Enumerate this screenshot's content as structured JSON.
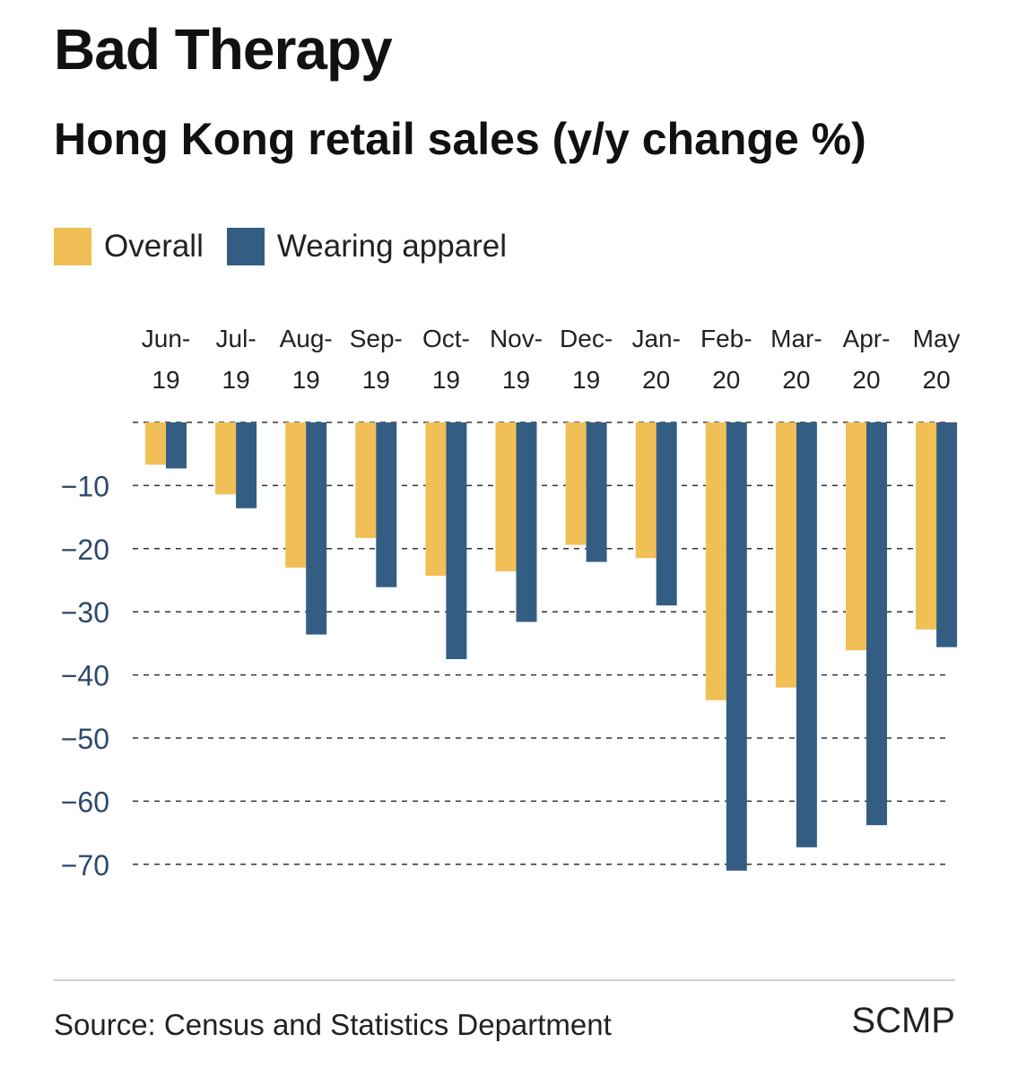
{
  "header": {
    "title": "Bad Therapy",
    "subtitle": "Hong Kong retail sales (y/y change %)"
  },
  "legend": {
    "items": [
      {
        "label": "Overall",
        "color": "#F0BF55"
      },
      {
        "label": "Wearing apparel",
        "color": "#345D84"
      }
    ]
  },
  "chart_data": {
    "type": "bar",
    "title": "Bad Therapy",
    "subtitle": "Hong Kong retail sales (y/y change %)",
    "categories": [
      [
        "Jun-",
        "19"
      ],
      [
        "Jul-",
        "19"
      ],
      [
        "Aug-",
        "19"
      ],
      [
        "Sep-",
        "19"
      ],
      [
        "Oct-",
        "19"
      ],
      [
        "Nov-",
        "19"
      ],
      [
        "Dec-",
        "19"
      ],
      [
        "Jan-",
        "20"
      ],
      [
        "Feb-",
        "20"
      ],
      [
        "Mar-",
        "20"
      ],
      [
        "Apr-",
        "20"
      ],
      [
        "May",
        "20"
      ]
    ],
    "series": [
      {
        "name": "Overall",
        "color": "#F0BF55",
        "values": [
          -6.7,
          -11.4,
          -23.0,
          -18.3,
          -24.3,
          -23.6,
          -19.4,
          -21.5,
          -44.0,
          -42.0,
          -36.1,
          -32.8
        ]
      },
      {
        "name": "Wearing apparel",
        "color": "#345D84",
        "values": [
          -7.3,
          -13.6,
          -33.6,
          -26.1,
          -37.5,
          -31.6,
          -22.1,
          -29.0,
          -71.0,
          -67.3,
          -63.8,
          -35.6
        ]
      }
    ],
    "yticks": [
      -10,
      -20,
      -30,
      -40,
      -50,
      -60,
      -70
    ],
    "ylim": [
      -70,
      0
    ],
    "xlabel": "",
    "ylabel": "",
    "grid": "dashed horizontal",
    "xaxis_position": "top",
    "tick_color": "#2E4A6B"
  },
  "footer": {
    "source": "Source: Census and Statistics Department",
    "brand": "SCMP"
  }
}
